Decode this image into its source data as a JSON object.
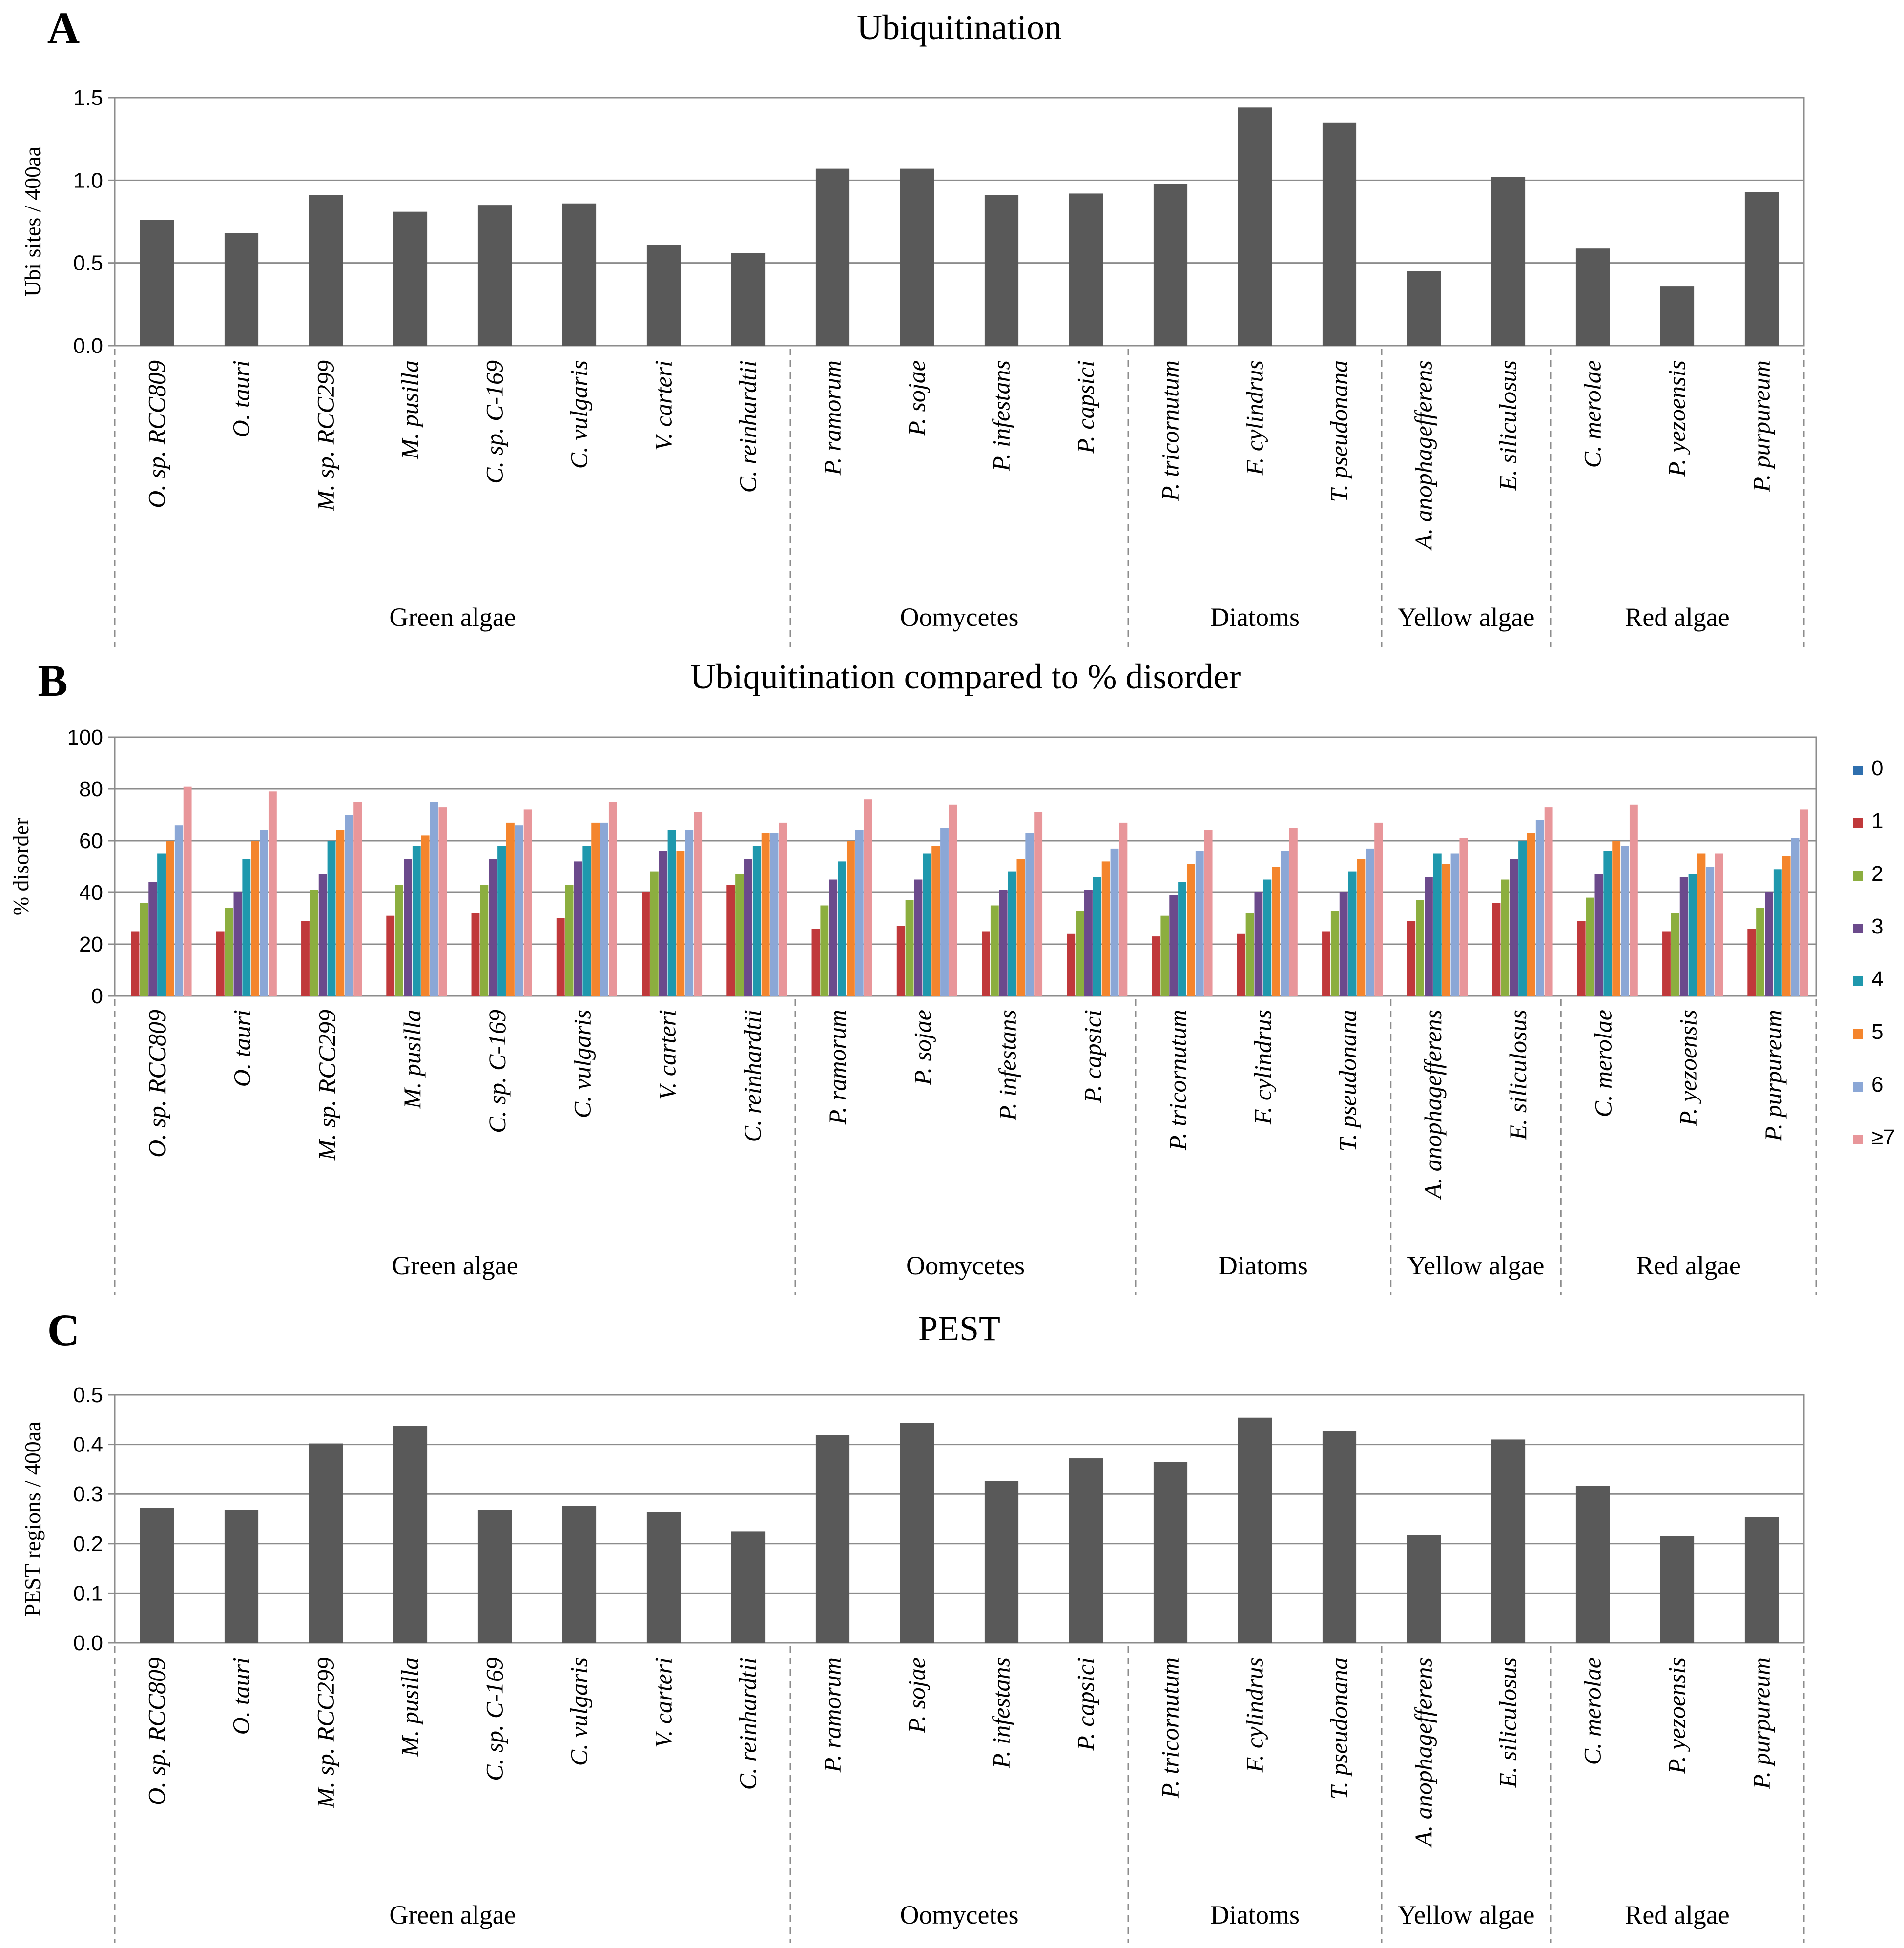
{
  "chart_data": [
    {
      "panel": "A",
      "type": "bar",
      "title": "Ubiquitination",
      "ylabel": "Ubi sites / 400aa",
      "ylim": [
        0,
        1.5
      ],
      "yticks": [
        "0.0",
        "0.5",
        "1.0",
        "1.5"
      ],
      "bar_color": "#595959",
      "categories": [
        "O. sp. RCC809",
        "O. tauri",
        "M. sp. RCC299",
        "M. pusilla",
        "C. sp. C-169",
        "C. vulgaris",
        "V. carteri",
        "C. reinhardtii",
        "P. ramorum",
        "P. sojae",
        "P. infestans",
        "P. capsici",
        "P. tricornutum",
        "F. cylindrus",
        "T. pseudonana",
        "A. anophagefferens",
        "E. siliculosus",
        "C. merolae",
        "P. yezoensis",
        "P. purpureum"
      ],
      "values": [
        0.76,
        0.68,
        0.91,
        0.81,
        0.85,
        0.86,
        0.61,
        0.56,
        1.07,
        1.07,
        0.91,
        0.92,
        0.98,
        1.44,
        1.35,
        0.45,
        1.02,
        0.59,
        0.36,
        0.93
      ],
      "groups": [
        {
          "label": "Green algae",
          "count": 8
        },
        {
          "label": "Oomycetes",
          "count": 4
        },
        {
          "label": "Diatoms",
          "count": 3
        },
        {
          "label": "Yellow algae",
          "count": 2
        },
        {
          "label": "Red  algae",
          "count": 3
        }
      ]
    },
    {
      "panel": "B",
      "type": "bar",
      "title": "Ubiquitination compared to % disorder",
      "ylabel": "% disorder",
      "ylim": [
        0,
        100
      ],
      "yticks": [
        "0",
        "20",
        "40",
        "60",
        "80",
        "100"
      ],
      "categories": [
        "O. sp. RCC809",
        "O. tauri",
        "M. sp. RCC299",
        "M. pusilla",
        "C. sp. C-169",
        "C. vulgaris",
        "V. carteri",
        "C. reinhardtii",
        "P. ramorum",
        "P. sojae",
        "P. infestans",
        "P. capsici",
        "P. tricornutum",
        "F. cylindrus",
        "T. pseudonana",
        "A. anophagefferens",
        "E. siliculosus",
        "C. merolae",
        "P. yezoensis",
        "P. purpureum"
      ],
      "legend": "right",
      "series": [
        {
          "name": "0",
          "color": "#2e6fae",
          "values": [
            0,
            0,
            0,
            0,
            0,
            0,
            0,
            0,
            0,
            0,
            0,
            0,
            0,
            0,
            0,
            0,
            0,
            0,
            0,
            0
          ]
        },
        {
          "name": "1",
          "color": "#c0393b",
          "values": [
            25,
            25,
            29,
            31,
            32,
            30,
            40,
            43,
            26,
            27,
            25,
            24,
            23,
            24,
            25,
            29,
            36,
            29,
            25,
            26
          ]
        },
        {
          "name": "2",
          "color": "#8cae3f",
          "values": [
            36,
            34,
            41,
            43,
            43,
            43,
            48,
            47,
            35,
            37,
            35,
            33,
            31,
            32,
            33,
            37,
            45,
            38,
            32,
            34
          ]
        },
        {
          "name": "3",
          "color": "#6b4a8c",
          "values": [
            44,
            40,
            47,
            53,
            53,
            52,
            56,
            53,
            45,
            45,
            41,
            41,
            39,
            40,
            40,
            46,
            53,
            47,
            46,
            40
          ]
        },
        {
          "name": "4",
          "color": "#1f98ad",
          "values": [
            55,
            53,
            60,
            58,
            58,
            58,
            64,
            58,
            52,
            55,
            48,
            46,
            44,
            45,
            48,
            55,
            60,
            56,
            47,
            49
          ]
        },
        {
          "name": "5",
          "color": "#f4852d",
          "values": [
            60,
            60,
            64,
            62,
            67,
            67,
            56,
            63,
            60,
            58,
            53,
            52,
            51,
            50,
            53,
            51,
            63,
            60,
            55,
            54
          ]
        },
        {
          "name": "6",
          "color": "#8ba7d6",
          "values": [
            66,
            64,
            70,
            75,
            66,
            67,
            64,
            63,
            64,
            65,
            63,
            57,
            56,
            56,
            57,
            55,
            68,
            58,
            50,
            61
          ]
        },
        {
          "name": "≥7",
          "color": "#e8969a",
          "values": [
            81,
            79,
            75,
            73,
            72,
            75,
            71,
            67,
            76,
            74,
            71,
            67,
            64,
            65,
            67,
            61,
            73,
            74,
            55,
            72
          ]
        }
      ],
      "groups": [
        {
          "label": "Green algae",
          "count": 8
        },
        {
          "label": "Oomycetes",
          "count": 4
        },
        {
          "label": "Diatoms",
          "count": 3
        },
        {
          "label": "Yellow algae",
          "count": 2
        },
        {
          "label": "Red  algae",
          "count": 3
        }
      ]
    },
    {
      "panel": "C",
      "type": "bar",
      "title": "PEST",
      "ylabel": "PEST regions / 400aa",
      "ylim": [
        0,
        0.5
      ],
      "yticks": [
        "0.0",
        "0.1",
        "0.2",
        "0.3",
        "0.4",
        "0.5"
      ],
      "bar_color": "#595959",
      "categories": [
        "O. sp. RCC809",
        "O. tauri",
        "M. sp. RCC299",
        "M. pusilla",
        "C. sp. C-169",
        "C. vulgaris",
        "V. carteri",
        "C. reinhardtii",
        "P. ramorum",
        "P. sojae",
        "P. infestans",
        "P. capsici",
        "P. tricornutum",
        "F. cylindrus",
        "T. pseudonana",
        "A. anophagefferens",
        "E. siliculosus",
        "C. merolae",
        "P. yezoensis",
        "P. purpureum"
      ],
      "values": [
        0.272,
        0.268,
        0.402,
        0.437,
        0.268,
        0.276,
        0.264,
        0.225,
        0.419,
        0.443,
        0.326,
        0.372,
        0.365,
        0.454,
        0.427,
        0.217,
        0.41,
        0.316,
        0.215,
        0.253
      ],
      "groups": [
        {
          "label": "Green algae",
          "count": 8
        },
        {
          "label": "Oomycetes",
          "count": 4
        },
        {
          "label": "Diatoms",
          "count": 3
        },
        {
          "label": "Yellow algae",
          "count": 2
        },
        {
          "label": "Red  algae",
          "count": 3
        }
      ]
    }
  ]
}
